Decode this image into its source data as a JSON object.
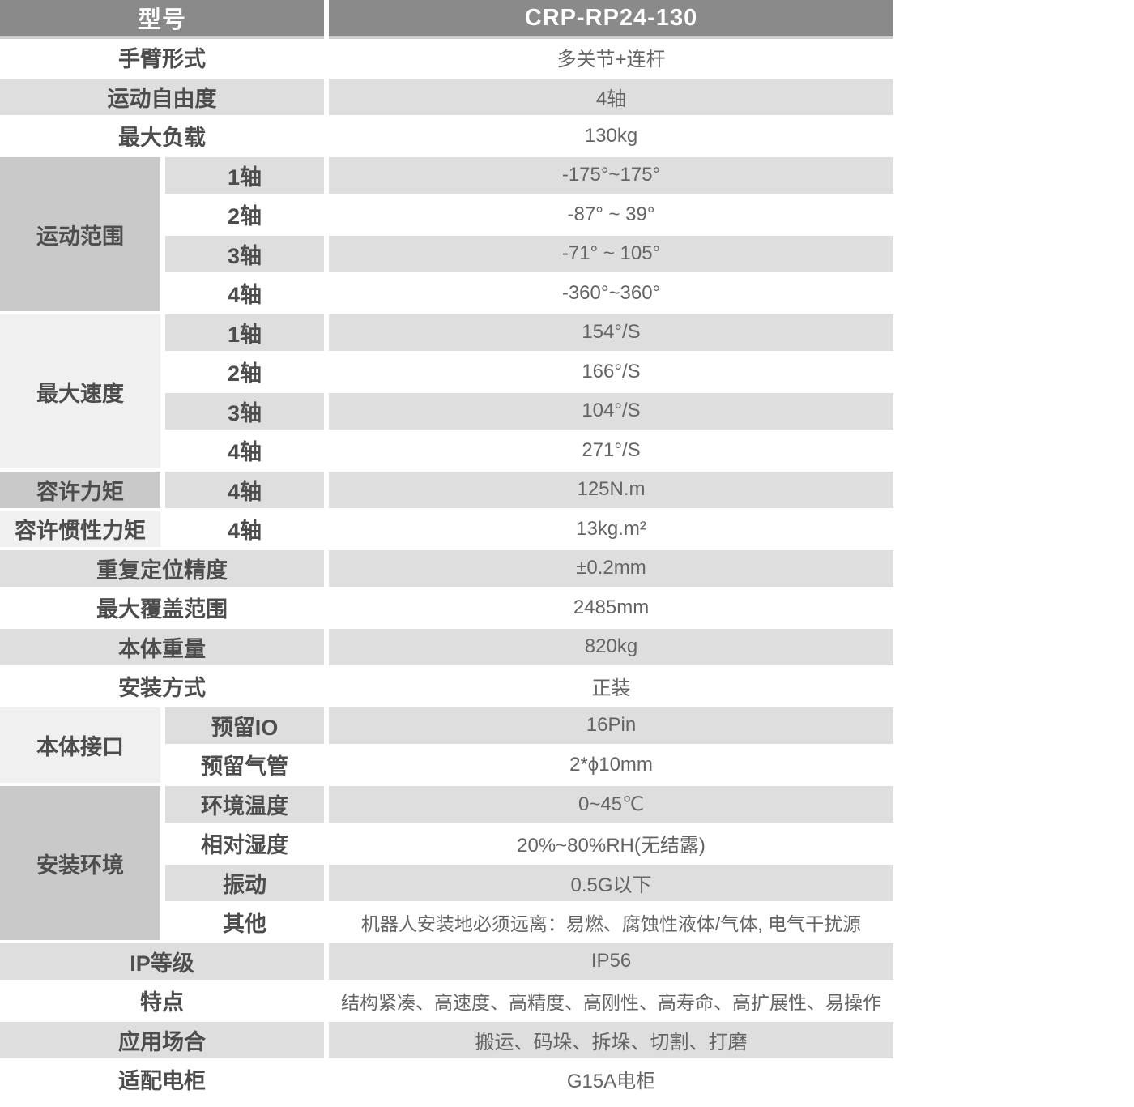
{
  "table": {
    "colors": {
      "header_bg": "#8a8a8a",
      "header_text": "#ffffff",
      "row_alt_gray": "#dedede",
      "group_dark": "#c9c9c9",
      "group_light": "#f0f0f0",
      "label_text": "#4d4d4d",
      "value_text": "#646464",
      "header_shadow": "#cdcdcd"
    },
    "header": {
      "label": "型号",
      "value": "CRP-RP24-130"
    },
    "sections": [
      {
        "label": "手臂形式",
        "value": "多关节+连杆"
      },
      {
        "label": "运动自由度",
        "value": "4轴"
      },
      {
        "label": "最大负载",
        "value": "130kg"
      },
      {
        "label": "运动范围",
        "rows": [
          {
            "sub": "1轴",
            "value": "-175°~175°"
          },
          {
            "sub": "2轴",
            "value": "-87° ~ 39°"
          },
          {
            "sub": "3轴",
            "value": "-71° ~ 105°"
          },
          {
            "sub": "4轴",
            "value": "-360°~360°"
          }
        ]
      },
      {
        "label": "最大速度",
        "rows": [
          {
            "sub": "1轴",
            "value": "154°/S"
          },
          {
            "sub": "2轴",
            "value": "166°/S"
          },
          {
            "sub": "3轴",
            "value": "104°/S"
          },
          {
            "sub": "4轴",
            "value": "271°/S"
          }
        ]
      },
      {
        "label": "容许力矩",
        "rows": [
          {
            "sub": "4轴",
            "value": "125N.m"
          }
        ]
      },
      {
        "label": "容许惯性力矩",
        "rows": [
          {
            "sub": "4轴",
            "value": "13kg.m²"
          }
        ]
      },
      {
        "label": "重复定位精度",
        "value": "±0.2mm"
      },
      {
        "label": "最大覆盖范围",
        "value": "2485mm"
      },
      {
        "label": "本体重量",
        "value": "820kg"
      },
      {
        "label": "安装方式",
        "value": "正装"
      },
      {
        "label": "本体接口",
        "rows": [
          {
            "sub": "预留IO",
            "value": "16Pin"
          },
          {
            "sub": "预留气管",
            "value": "2*ϕ10mm"
          }
        ]
      },
      {
        "label": "安装环境",
        "rows": [
          {
            "sub": "环境温度",
            "value": "0~45℃"
          },
          {
            "sub": "相对湿度",
            "value": "20%~80%RH(无结露)"
          },
          {
            "sub": "振动",
            "value": "0.5G以下"
          },
          {
            "sub": "其他",
            "value": "机器人安装地必须远离：易燃、腐蚀性液体/气体, 电气干扰源"
          }
        ]
      },
      {
        "label": "IP等级",
        "value": "IP56"
      },
      {
        "label": "特点",
        "value": "结构紧凑、高速度、高精度、高刚性、高寿命、高扩展性、易操作"
      },
      {
        "label": "应用场合",
        "value": "搬运、码垛、拆垛、切割、打磨"
      },
      {
        "label": "适配电柜",
        "value": "G15A电柜"
      }
    ]
  }
}
